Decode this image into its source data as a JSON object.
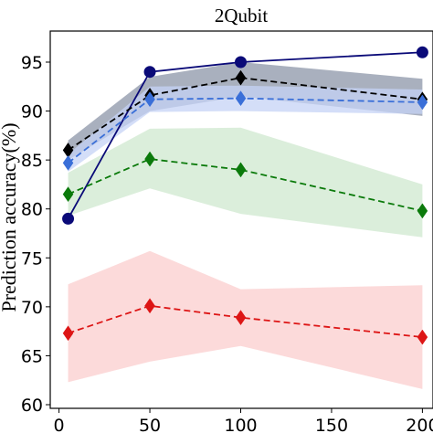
{
  "chart_data": {
    "type": "line",
    "title": "2Qubit",
    "xlabel": "",
    "ylabel": "Prediction accuracy(%)",
    "xlim": [
      0,
      200
    ],
    "ylim": [
      60,
      97.5
    ],
    "x_ticks": [
      0,
      50,
      100,
      150,
      200
    ],
    "y_ticks": [
      60,
      65,
      70,
      75,
      80,
      85,
      90,
      95
    ],
    "grid": false,
    "legend": "none",
    "x": [
      5,
      50,
      100,
      200
    ],
    "series": [
      {
        "color": "#0a0a78",
        "line_style": "solid",
        "marker": "circle",
        "values": [
          79.0,
          94.0,
          95.0,
          96.0
        ]
      },
      {
        "color": "#000000",
        "band_color": "#8c96a8",
        "line_style": "dashed",
        "marker": "diamond",
        "values": [
          86.0,
          91.6,
          93.4,
          91.2
        ],
        "band_lower": [
          85.0,
          90.0,
          91.5,
          89.5
        ],
        "band_upper": [
          87.0,
          93.5,
          95.0,
          93.3
        ]
      },
      {
        "color": "#3a6fd8",
        "band_color": "#c6d3f5",
        "line_style": "dashed",
        "marker": "diamond",
        "values": [
          84.7,
          91.2,
          91.3,
          90.9
        ],
        "band_lower": [
          83.8,
          89.9,
          90.0,
          89.7
        ],
        "band_upper": [
          85.6,
          92.5,
          92.6,
          92.2
        ]
      },
      {
        "color": "#0b7a0b",
        "band_color": "#cfe8cf",
        "line_style": "dashed",
        "marker": "diamond",
        "values": [
          81.5,
          85.1,
          84.0,
          79.8
        ],
        "band_lower": [
          79.3,
          82.1,
          79.5,
          77.1
        ],
        "band_upper": [
          83.7,
          88.2,
          88.3,
          82.5
        ]
      },
      {
        "color": "#dd1515",
        "band_color": "#fbcdcd",
        "line_style": "dashed",
        "marker": "diamond",
        "values": [
          67.3,
          70.1,
          68.9,
          66.9
        ],
        "band_lower": [
          62.3,
          64.4,
          66.0,
          61.6
        ],
        "band_upper": [
          72.3,
          75.7,
          71.8,
          72.2
        ]
      }
    ]
  }
}
